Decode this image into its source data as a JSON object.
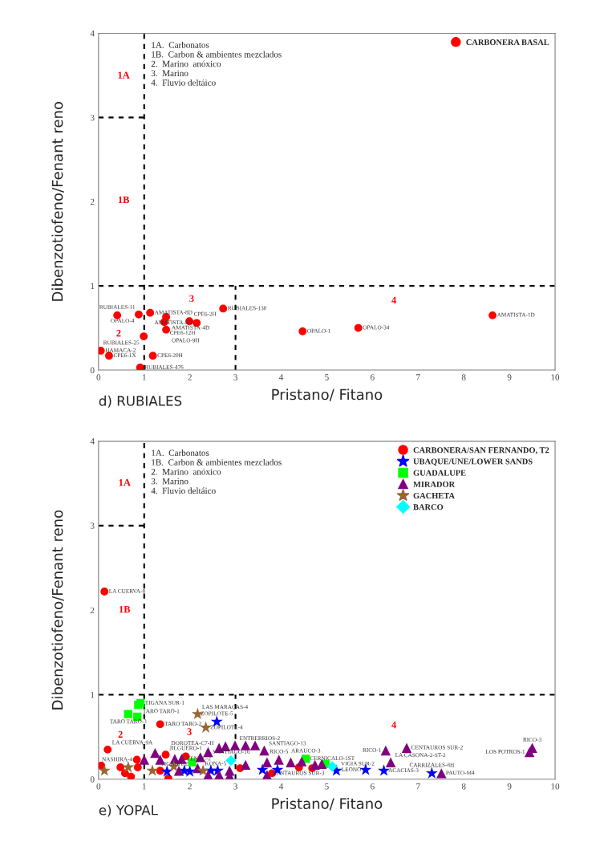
{
  "chart_data": [
    {
      "type": "scatter",
      "title": "d) RUBIALES",
      "xlabel": "Pristano/ Fitano",
      "ylabel": "Dibenzotiofeno/Fenant reno",
      "xlim": [
        0,
        10
      ],
      "ylim": [
        0,
        4
      ],
      "xticks": [
        0,
        1,
        2,
        3,
        4,
        5,
        6,
        7,
        8,
        9,
        10
      ],
      "yticks": [
        0,
        1,
        2,
        3,
        4
      ],
      "grid": false,
      "legend": "top right",
      "series": [
        {
          "name": "CARBONERA BASAL",
          "marker": "circle",
          "color": "#ff0000",
          "x": [
            0.41,
            0.88,
            1.13,
            1.48,
            1.44,
            1.48,
            1.99,
            2.15,
            2.73,
            0.99,
            0.05,
            0.23,
            1.19,
            0.91,
            4.47,
            5.69,
            8.63
          ],
          "values": [
            0.65,
            0.66,
            0.68,
            0.63,
            0.57,
            0.48,
            0.58,
            0.56,
            0.73,
            0.4,
            0.23,
            0.17,
            0.17,
            0.03,
            0.46,
            0.5,
            0.65
          ],
          "value_labels": [
            "RUBIALES-11",
            "OPALO-4",
            "AMATISTA-8D",
            "AMATISTA-4D",
            "CPE6-12H",
            "OPALO-9H",
            "CPE6-2H",
            "AMATISTA-5D",
            "RUBIALES-130",
            "RUBIALES-25",
            "HAMACA-2",
            "CPE6-1X",
            "CPE6-20H",
            "RUBIALES-476",
            "OPALO-1",
            "OPALO-34",
            "AMATISTA-1D"
          ]
        },
        {
          "type": "line",
          "color": "#000000",
          "line_style": "dashed",
          "marker": "none",
          "x": [
            0,
            1
          ],
          "values": [
            3,
            3
          ]
        },
        {
          "type": "line",
          "color": "#000000",
          "line_style": "dashed",
          "marker": "none",
          "x": [
            3,
            3
          ],
          "values": [
            0,
            1
          ]
        },
        {
          "type": "line",
          "color": "#000000",
          "line_style": "dashed",
          "marker": "none",
          "x": [
            1,
            1
          ],
          "values": [
            0,
            4
          ]
        },
        {
          "type": "line",
          "color": "#000000",
          "line_style": "dashed",
          "marker": "none",
          "x": [
            0,
            10
          ],
          "values": [
            1,
            1
          ]
        }
      ],
      "annotations": [
        "1A.  Carbonatos",
        "1B.  Carbon & ambientes mezclados",
        "2.  Marino  anóxico",
        "3.  Marino",
        "4.  Fluvio deltáico",
        "1A",
        "1B",
        "2",
        "3",
        "4"
      ]
    },
    {
      "type": "scatter",
      "title": "e) YOPAL",
      "xlabel": "Pristano/ Fitano",
      "ylabel": "Dibenzotiofeno/Fenant reno",
      "xlim": [
        0,
        10
      ],
      "ylim": [
        0,
        4
      ],
      "xticks": [
        0,
        1,
        2,
        3,
        4,
        5,
        6,
        7,
        8,
        9,
        10
      ],
      "yticks": [
        0,
        1,
        2,
        3,
        4
      ],
      "grid": false,
      "legend": "top right",
      "series": [
        {
          "name": "CARBONERA/SAN FERNANDO, T2",
          "marker": "circle",
          "color": "#ff0000",
          "x": [
            0.13,
            1.35,
            0.2,
            0.06,
            0.48,
            0.58,
            0.71,
            0.86,
            0.84,
            1.47,
            1.53,
            1.91,
            1.35,
            3.1,
            3.69,
            3.8,
            3.98,
            4.39,
            4.68
          ],
          "values": [
            2.22,
            0.65,
            0.35,
            0.16,
            0.14,
            0.07,
            0.03,
            0.14,
            0.23,
            0.29,
            0.01,
            0.27,
            0.1,
            0.13,
            null,
            0.07,
            null,
            0.14,
            0.13
          ],
          "value_labels": [
            "LA CUERVA-8",
            "TARO TARO-2",
            "LA CUERVA-9A",
            null,
            null,
            null,
            null,
            null,
            "NASHIRA-4",
            "DOROTEA-C7-H",
            null,
            "JILGUERO-1",
            null,
            null,
            null,
            null,
            null,
            null,
            null
          ]
        },
        {
          "name": "UBAQUE/UNE/LOWER SANDS",
          "marker": "star",
          "color": "#0000ff",
          "x": [
            2.59,
            1.5,
            1.88,
            2.0,
            2.46,
            2.61,
            3.59,
            3.92,
            5.21,
            5.85,
            6.25,
            7.3
          ],
          "values": [
            0.68,
            0.09,
            0.1,
            0.09,
            0.1,
            0.1,
            0.11,
            0.11,
            0.1,
            0.11,
            0.1,
            0.07
          ],
          "value_labels": [
            "ZOPILOTE-5",
            null,
            null,
            null,
            null,
            null,
            null,
            null,
            "VIGIA SUR-2",
            "LEONO",
            "ACACIAS-3",
            "CARRIZALES-8H"
          ]
        },
        {
          "name": "GUADALUPE",
          "marker": "square",
          "color": "#00ff00",
          "x": [
            0.87,
            0.92,
            0.65,
            0.85,
            2.05,
            4.54,
            4.97
          ],
          "values": [
            0.88,
            0.9,
            0.77,
            0.74,
            0.2,
            0.24,
            0.18
          ],
          "value_labels": [
            "TARO TARO-1",
            "TIGANA SUR-1",
            "TARO TARO-3",
            null,
            null,
            "ARAUCO-3",
            null
          ]
        },
        {
          "name": "MIRADOR",
          "marker": "triangle",
          "color": "#800080",
          "x": [
            1.0,
            1.24,
            1.35,
            1.67,
            1.82,
            2.23,
            2.4,
            2.64,
            2.78,
            2.99,
            3.22,
            3.43,
            3.63,
            3.69,
            3.95,
            4.21,
            4.45,
            4.74,
            4.89,
            2.87,
            2.64,
            2.4,
            2.87,
            3.22,
            3.69,
            1.76,
            2.17,
            6.29,
            6.75,
            6.4,
            7.51,
            9.5,
            9.44
          ],
          "values": [
            0.23,
            0.31,
            0.23,
            0.24,
            0.24,
            0.26,
            0.32,
            0.37,
            0.39,
            0.4,
            0.4,
            0.4,
            0.34,
            0.2,
            0.23,
            0.2,
            0.21,
            0.17,
            0.18,
            0.1,
            0.05,
            0.05,
            0.04,
            0.17,
            0.05,
            0.1,
            0.13,
            0.34,
            0.37,
            0.2,
            0.07,
            0.37,
            0.32
          ],
          "value_labels": [
            null,
            "TIGANA-2",
            null,
            null,
            "YENAC-2",
            "KONA-5",
            "SANTIAGO-16",
            null,
            null,
            "ENTRERRIOS-2",
            null,
            null,
            "SANTIAGO-13",
            "CENTAUROS SUR-3",
            "RICO-5",
            null,
            null,
            null,
            null,
            null,
            null,
            null,
            null,
            null,
            null,
            null,
            null,
            "RICO-1",
            "CENTAUROS SUR-2",
            "LA CASONA-2-ST-2",
            "PAUTO-M4",
            "RICO-3",
            "LOS POTROS-1"
          ]
        },
        {
          "name": "GACHETA",
          "marker": "star",
          "color": "#996633",
          "x": [
            2.17,
            2.35,
            0.13,
            0.65,
            1.18,
            1.65,
            2.29
          ],
          "values": [
            0.77,
            0.61,
            0.1,
            0.14,
            0.1,
            0.15,
            0.1
          ],
          "value_labels": [
            "LAS MARACAS-4",
            "ZOPILOTE-4",
            null,
            null,
            null,
            null,
            null
          ]
        },
        {
          "name": "BARCO",
          "marker": "diamond",
          "color": "#00ffff",
          "x": [
            5.12,
            2.9
          ],
          "values": [
            0.15,
            0.22
          ],
          "value_labels": [
            "CERNICALO-1ST",
            null
          ]
        },
        {
          "type": "line",
          "color": "#000000",
          "line_style": "dashed",
          "marker": "none",
          "x": [
            0,
            1
          ],
          "values": [
            3,
            3
          ]
        },
        {
          "type": "line",
          "color": "#000000",
          "line_style": "dashed",
          "marker": "none",
          "x": [
            3,
            3
          ],
          "values": [
            0,
            1
          ]
        },
        {
          "type": "line",
          "color": "#000000",
          "line_style": "dashed",
          "marker": "none",
          "x": [
            1,
            1
          ],
          "values": [
            0,
            4
          ]
        },
        {
          "type": "line",
          "color": "#000000",
          "line_style": "dashed",
          "marker": "none",
          "x": [
            0,
            10
          ],
          "values": [
            1,
            1
          ]
        }
      ],
      "annotations": [
        "1A.  Carbonatos",
        "1B.  Carbon & ambientes mezclados",
        "2.  Marino  anóxico",
        "3.  Marino",
        "4.  Fluvio deltáico",
        "1A",
        "1B",
        "2",
        "3",
        "4"
      ]
    }
  ]
}
